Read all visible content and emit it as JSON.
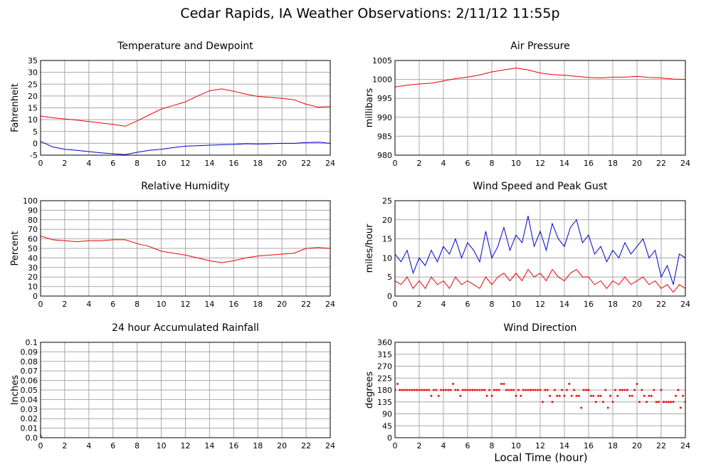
{
  "title": "Cedar Rapids, IA Weather Observations: 2/11/12 11:55p",
  "xaxis_label": "Local Time (hour)",
  "x_ticks": [
    0,
    2,
    4,
    6,
    8,
    10,
    12,
    14,
    16,
    18,
    20,
    22,
    24
  ],
  "colors": {
    "red": "#ee0000",
    "blue": "#0000cc",
    "grid": "#a8a8a8"
  },
  "chart_data": [
    {
      "id": "temp",
      "type": "line",
      "title": "Temperature and Dewpoint",
      "ylabel": "Fahrenheit",
      "xlim": [
        0,
        24
      ],
      "ylim": [
        -5,
        35
      ],
      "y_ticks": [
        -5,
        0,
        5,
        10,
        15,
        20,
        25,
        30,
        35
      ],
      "grid": true,
      "x": [
        0,
        1,
        2,
        3,
        4,
        5,
        6,
        7,
        8,
        9,
        10,
        11,
        12,
        13,
        14,
        15,
        16,
        17,
        18,
        19,
        20,
        21,
        22,
        23,
        24
      ],
      "series": [
        {
          "color": "#ee0000",
          "values": [
            11.5,
            10.8,
            10.3,
            9.8,
            9.2,
            8.6,
            8.0,
            7.2,
            9.5,
            12.0,
            14.5,
            16.0,
            17.5,
            20.0,
            22.2,
            23.0,
            22.0,
            20.8,
            19.8,
            19.4,
            19.0,
            18.4,
            16.5,
            15.3,
            15.5
          ]
        },
        {
          "color": "#0000cc",
          "values": [
            0.8,
            -1.5,
            -2.5,
            -3.0,
            -3.5,
            -4.0,
            -4.4,
            -4.8,
            -3.8,
            -3.0,
            -2.5,
            -1.8,
            -1.2,
            -1.0,
            -0.8,
            -0.6,
            -0.5,
            -0.2,
            -0.3,
            -0.2,
            0.0,
            0.0,
            0.3,
            0.5,
            0.0
          ]
        }
      ]
    },
    {
      "id": "pressure",
      "type": "line",
      "title": "Air Pressure",
      "ylabel": "millibars",
      "xlim": [
        0,
        24
      ],
      "ylim": [
        980,
        1005
      ],
      "y_ticks": [
        980,
        985,
        990,
        995,
        1000,
        1005
      ],
      "grid": true,
      "x": [
        0,
        1,
        2,
        3,
        4,
        5,
        6,
        7,
        8,
        9,
        10,
        11,
        12,
        13,
        14,
        15,
        16,
        17,
        18,
        19,
        20,
        21,
        22,
        23,
        24
      ],
      "series": [
        {
          "color": "#ee0000",
          "values": [
            998.0,
            998.5,
            998.8,
            999.0,
            999.6,
            1000.2,
            1000.6,
            1001.2,
            1002.0,
            1002.5,
            1003.0,
            1002.5,
            1001.7,
            1001.3,
            1001.1,
            1000.8,
            1000.5,
            1000.4,
            1000.6,
            1000.6,
            1000.8,
            1000.5,
            1000.4,
            1000.1,
            1000.0
          ]
        }
      ]
    },
    {
      "id": "humidity",
      "type": "line",
      "title": "Relative Humidity",
      "ylabel": "Percent",
      "xlim": [
        0,
        24
      ],
      "ylim": [
        0,
        100
      ],
      "y_ticks": [
        0,
        10,
        20,
        30,
        40,
        50,
        60,
        70,
        80,
        90,
        100
      ],
      "grid": true,
      "x": [
        0,
        1,
        2,
        3,
        4,
        5,
        6,
        7,
        8,
        9,
        10,
        11,
        12,
        13,
        14,
        15,
        16,
        17,
        18,
        19,
        20,
        21,
        22,
        23,
        24
      ],
      "series": [
        {
          "color": "#ee0000",
          "values": [
            63,
            59,
            58,
            57,
            58,
            58,
            59,
            59,
            55,
            52,
            47,
            45,
            43,
            40,
            37,
            35,
            37,
            40,
            42,
            43,
            44,
            45,
            50,
            51,
            50
          ]
        }
      ]
    },
    {
      "id": "wind",
      "type": "line",
      "title": "Wind Speed and Peak Gust",
      "ylabel": "miles/hour",
      "xlim": [
        0,
        24
      ],
      "ylim": [
        0,
        25
      ],
      "y_ticks": [
        0,
        5,
        10,
        15,
        20,
        25
      ],
      "grid": true,
      "x": [
        0,
        0.5,
        1,
        1.5,
        2,
        2.5,
        3,
        3.5,
        4,
        4.5,
        5,
        5.5,
        6,
        6.5,
        7,
        7.5,
        8,
        8.5,
        9,
        9.5,
        10,
        10.5,
        11,
        11.5,
        12,
        12.5,
        13,
        13.5,
        14,
        14.5,
        15,
        15.5,
        16,
        16.5,
        17,
        17.5,
        18,
        18.5,
        19,
        19.5,
        20,
        20.5,
        21,
        21.5,
        22,
        22.5,
        23,
        23.5,
        24
      ],
      "series": [
        {
          "color": "#0000cc",
          "values": [
            11,
            9,
            12,
            6,
            10,
            8,
            12,
            9,
            13,
            11,
            15,
            10,
            14,
            12,
            9,
            17,
            10,
            13,
            18,
            12,
            16,
            14,
            21,
            13,
            17,
            12,
            19,
            15,
            13,
            18,
            20,
            14,
            16,
            11,
            13,
            9,
            12,
            10,
            14,
            11,
            13,
            15,
            10,
            12,
            5,
            8,
            3,
            11,
            10
          ]
        },
        {
          "color": "#ee0000",
          "values": [
            4,
            3,
            5,
            2,
            4,
            2,
            5,
            3,
            4,
            2,
            5,
            3,
            4,
            3,
            2,
            5,
            3,
            5,
            6,
            4,
            6,
            4,
            7,
            5,
            6,
            4,
            7,
            5,
            4,
            6,
            7,
            5,
            5,
            3,
            4,
            2,
            4,
            3,
            5,
            3,
            4,
            5,
            3,
            4,
            2,
            3,
            1,
            3,
            2
          ]
        }
      ]
    },
    {
      "id": "rain",
      "type": "line",
      "title": "24 hour Accumulated Rainfall",
      "ylabel": "Inches",
      "xlim": [
        0,
        24
      ],
      "ylim": [
        0,
        0.1
      ],
      "y_ticks": [
        "0.0",
        "0.01",
        "0.02",
        "0.03",
        "0.04",
        "0.05",
        "0.06",
        "0.07",
        "0.08",
        "0.09",
        "0.1"
      ],
      "grid": true,
      "x": [
        0,
        0.1,
        24
      ],
      "series": [
        {
          "color": "#ee0000",
          "values": [
            0.004,
            0.0,
            0.0
          ]
        }
      ]
    },
    {
      "id": "direction",
      "type": "scatter",
      "title": "Wind Direction",
      "ylabel": "degrees",
      "xlim": [
        0,
        24
      ],
      "ylim": [
        0,
        360
      ],
      "y_ticks": [
        0,
        45,
        90,
        135,
        180,
        225,
        270,
        315,
        360
      ],
      "grid": true,
      "x": [
        0,
        0.2,
        0.4,
        0.6,
        0.8,
        1,
        1.2,
        1.4,
        1.6,
        1.8,
        2,
        2.2,
        2.4,
        2.6,
        2.8,
        3,
        3.2,
        3.4,
        3.6,
        3.8,
        4,
        4.2,
        4.4,
        4.6,
        4.8,
        5,
        5.2,
        5.4,
        5.6,
        5.8,
        6,
        6.2,
        6.4,
        6.6,
        6.8,
        7,
        7.2,
        7.4,
        7.6,
        7.8,
        8,
        8.2,
        8.4,
        8.6,
        8.8,
        9,
        9.2,
        9.4,
        9.6,
        9.8,
        10,
        10.2,
        10.4,
        10.6,
        10.8,
        11,
        11.2,
        11.4,
        11.6,
        11.8,
        12,
        12.2,
        12.4,
        12.6,
        12.8,
        13,
        13.2,
        13.4,
        13.6,
        13.8,
        14,
        14.2,
        14.4,
        14.6,
        14.8,
        15,
        15.2,
        15.4,
        15.6,
        15.8,
        16,
        16.2,
        16.4,
        16.6,
        16.8,
        17,
        17.2,
        17.4,
        17.6,
        17.8,
        18,
        18.2,
        18.4,
        18.6,
        18.8,
        19,
        19.2,
        19.4,
        19.6,
        19.8,
        20,
        20.2,
        20.4,
        20.6,
        20.8,
        21,
        21.2,
        21.4,
        21.6,
        21.8,
        22,
        22.2,
        22.4,
        22.6,
        22.8,
        23,
        23.2,
        23.4,
        23.6,
        23.8,
        24
      ],
      "series": [
        {
          "color": "#ee0000",
          "values": [
            180,
            203,
            180,
            180,
            180,
            180,
            180,
            180,
            180,
            180,
            180,
            180,
            180,
            180,
            180,
            158,
            180,
            180,
            158,
            180,
            180,
            180,
            180,
            180,
            203,
            180,
            180,
            158,
            180,
            180,
            180,
            180,
            180,
            180,
            180,
            180,
            180,
            180,
            158,
            180,
            158,
            180,
            180,
            180,
            203,
            203,
            180,
            180,
            180,
            180,
            158,
            180,
            158,
            180,
            180,
            180,
            180,
            180,
            180,
            180,
            180,
            135,
            180,
            180,
            158,
            135,
            180,
            158,
            158,
            180,
            158,
            180,
            203,
            158,
            180,
            158,
            158,
            113,
            180,
            180,
            180,
            158,
            158,
            135,
            158,
            158,
            135,
            180,
            113,
            158,
            135,
            180,
            158,
            180,
            180,
            180,
            180,
            158,
            158,
            180,
            203,
            135,
            180,
            158,
            135,
            158,
            158,
            180,
            135,
            135,
            180,
            135,
            135,
            135,
            135,
            135,
            158,
            180,
            113,
            158,
            135
          ]
        }
      ]
    }
  ]
}
